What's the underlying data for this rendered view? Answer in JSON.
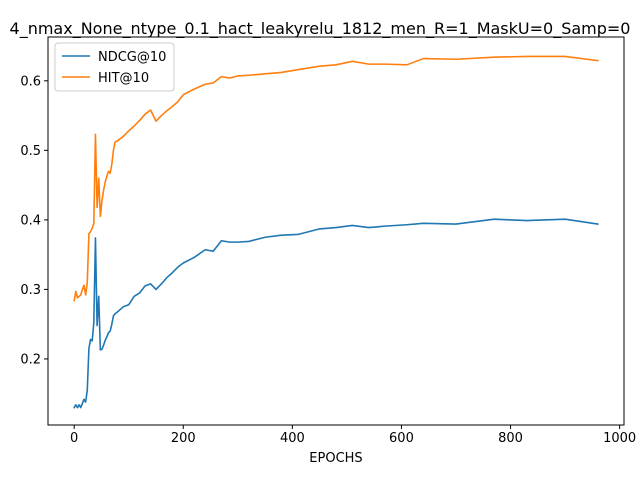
{
  "chart_data": {
    "type": "line",
    "title": "4_nmax_None_ntype_0.1_hact_leakyrelu_1812_men_R=1_MaskU=0_Samp=0",
    "xlabel": "EPOCHS",
    "ylabel": "",
    "xlim": [
      -48,
      1008
    ],
    "ylim": [
      0.105,
      0.663
    ],
    "xticks": [
      0,
      200,
      400,
      600,
      800,
      1000
    ],
    "xtick_labels": [
      "0",
      "200",
      "400",
      "600",
      "800",
      "1000"
    ],
    "yticks": [
      0.2,
      0.3,
      0.4,
      0.5,
      0.6
    ],
    "ytick_labels": [
      "0.2",
      "0.3",
      "0.4",
      "0.5",
      "0.6"
    ],
    "grid": false,
    "legend_position": "top-left",
    "series": [
      {
        "name": "NDCG@10",
        "color": "#1f77b4",
        "x": [
          0,
          3,
          6,
          9,
          12,
          15,
          18,
          21,
          24,
          27,
          30,
          33,
          36,
          39,
          42,
          45,
          48,
          51,
          54,
          57,
          60,
          63,
          66,
          69,
          72,
          75,
          80,
          90,
          100,
          110,
          120,
          130,
          140,
          150,
          160,
          170,
          180,
          190,
          200,
          220,
          240,
          255,
          270,
          285,
          300,
          320,
          350,
          380,
          410,
          450,
          480,
          510,
          540,
          570,
          610,
          640,
          700,
          770,
          830,
          900,
          960
        ],
        "y": [
          0.13,
          0.134,
          0.13,
          0.134,
          0.13,
          0.136,
          0.142,
          0.138,
          0.155,
          0.215,
          0.228,
          0.226,
          0.252,
          0.374,
          0.248,
          0.29,
          0.213,
          0.214,
          0.22,
          0.227,
          0.232,
          0.238,
          0.24,
          0.25,
          0.262,
          0.265,
          0.268,
          0.275,
          0.278,
          0.29,
          0.295,
          0.305,
          0.308,
          0.3,
          0.308,
          0.317,
          0.324,
          0.332,
          0.338,
          0.346,
          0.357,
          0.355,
          0.37,
          0.368,
          0.368,
          0.369,
          0.375,
          0.378,
          0.379,
          0.387,
          0.389,
          0.392,
          0.389,
          0.391,
          0.393,
          0.395,
          0.394,
          0.401,
          0.399,
          0.401,
          0.394
        ]
      },
      {
        "name": "HIT@10",
        "color": "#ff7f0e",
        "x": [
          0,
          3,
          6,
          9,
          12,
          15,
          18,
          21,
          24,
          27,
          30,
          33,
          36,
          39,
          42,
          45,
          48,
          51,
          54,
          57,
          60,
          63,
          66,
          69,
          72,
          75,
          80,
          90,
          100,
          110,
          120,
          130,
          140,
          150,
          160,
          170,
          180,
          190,
          200,
          220,
          240,
          255,
          270,
          285,
          300,
          320,
          350,
          380,
          410,
          450,
          480,
          510,
          540,
          570,
          610,
          640,
          700,
          770,
          830,
          900,
          960
        ],
        "y": [
          0.284,
          0.297,
          0.288,
          0.29,
          0.292,
          0.3,
          0.306,
          0.292,
          0.31,
          0.38,
          0.383,
          0.388,
          0.395,
          0.523,
          0.418,
          0.46,
          0.405,
          0.428,
          0.443,
          0.455,
          0.463,
          0.47,
          0.467,
          0.48,
          0.5,
          0.512,
          0.514,
          0.52,
          0.528,
          0.535,
          0.543,
          0.552,
          0.558,
          0.542,
          0.55,
          0.557,
          0.563,
          0.57,
          0.58,
          0.588,
          0.595,
          0.597,
          0.606,
          0.604,
          0.607,
          0.608,
          0.61,
          0.612,
          0.616,
          0.621,
          0.623,
          0.628,
          0.624,
          0.624,
          0.623,
          0.632,
          0.631,
          0.634,
          0.635,
          0.635,
          0.629
        ]
      }
    ]
  }
}
